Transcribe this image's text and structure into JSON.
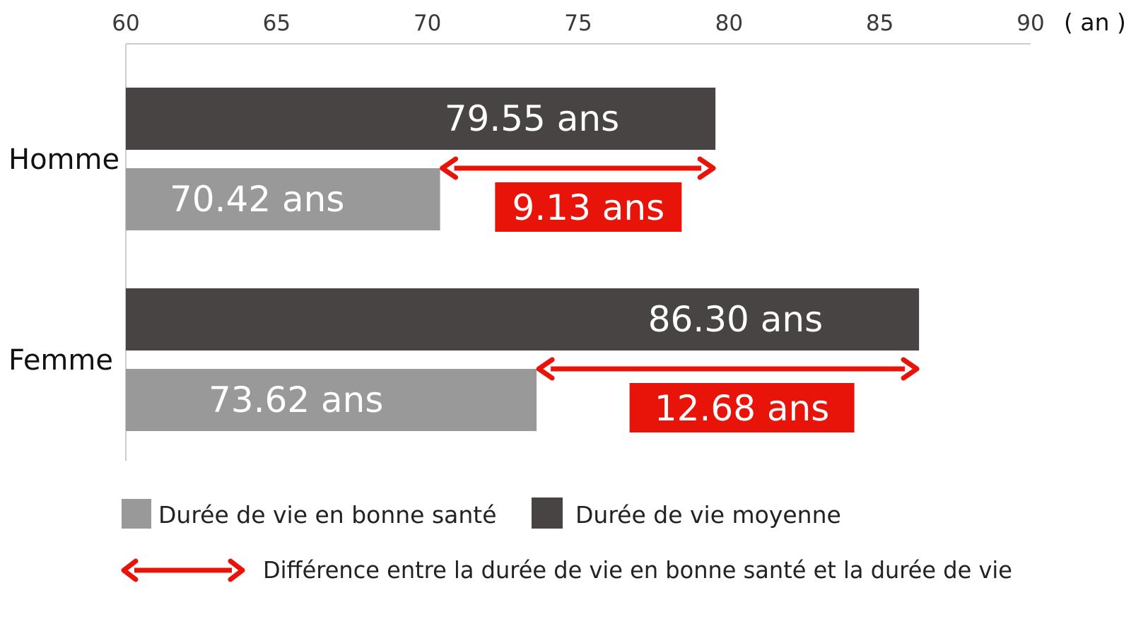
{
  "chart_data": {
    "type": "bar",
    "orientation": "horizontal",
    "x_axis": {
      "min": 60,
      "max": 90,
      "ticks": [
        "60",
        "65",
        "70",
        "75",
        "80",
        "85",
        "90"
      ],
      "unit": "( an )",
      "position": "top"
    },
    "categories": [
      "Homme",
      "Femme"
    ],
    "series": [
      {
        "name": "Durée de vie moyenne",
        "color": "#474443",
        "values": [
          79.55,
          86.3
        ],
        "labels": [
          "79.55 ans",
          "86.30 ans"
        ]
      },
      {
        "name": "Durée de vie en bonne santé",
        "color": "#999999",
        "values": [
          70.42,
          73.62
        ],
        "labels": [
          "70.42 ans",
          "73.62 ans"
        ]
      }
    ],
    "differences": {
      "color": "#e8140a",
      "values": [
        9.13,
        12.68
      ],
      "labels": [
        "9.13 ans",
        "12.68 ans"
      ]
    },
    "legend": {
      "placement": "bottom",
      "items": [
        {
          "label": "Durée de vie en bonne santé",
          "color": "#999999"
        },
        {
          "label": "Durée de vie moyenne",
          "color": "#474443"
        }
      ],
      "arrow_label": "Différence entre la durée de vie en bonne santé et la durée de vie"
    },
    "grid": false
  }
}
